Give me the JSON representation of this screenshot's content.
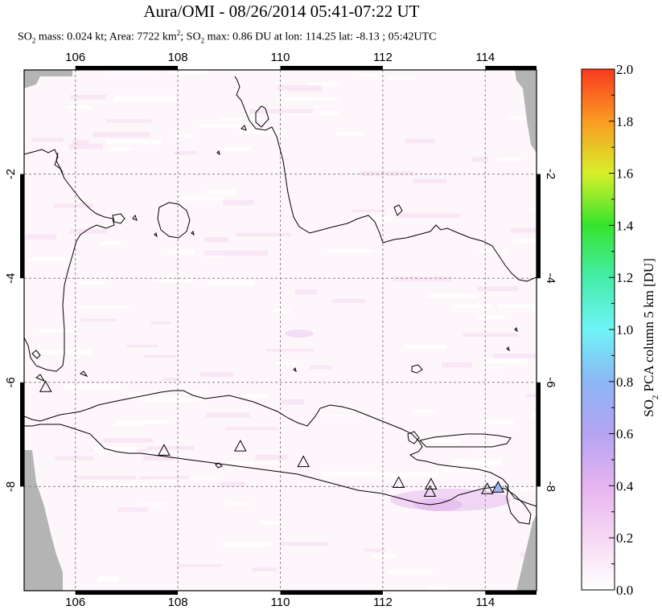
{
  "title": "Aura/OMI - 08/26/2014 05:41-07:22 UT",
  "subtitle": {
    "part1": "SO",
    "sub1": "2",
    "part2": " mass: 0.024 kt; Area: 7722 km",
    "sup1": "2",
    "part3": "; SO",
    "sub2": "2",
    "part4": " max: 0.86 DU at lon: 114.25 lat: -8.13 ; 05:42UTC"
  },
  "map": {
    "lon_range": [
      105,
      115
    ],
    "lat_range": [
      -10,
      0
    ],
    "lon_ticks": [
      "106",
      "108",
      "110",
      "112",
      "114"
    ],
    "lat_ticks": [
      "-2",
      "-4",
      "-6",
      "-8"
    ],
    "volcanoes": [
      {
        "lon": 105.42,
        "lat": -6.1
      },
      {
        "lon": 107.73,
        "lat": -7.32
      },
      {
        "lon": 109.22,
        "lat": -7.24
      },
      {
        "lon": 110.45,
        "lat": -7.54
      },
      {
        "lon": 112.31,
        "lat": -7.94
      },
      {
        "lon": 112.94,
        "lat": -7.97
      },
      {
        "lon": 112.92,
        "lat": -8.11
      },
      {
        "lon": 114.04,
        "lat": -8.06
      },
      {
        "lon": 114.25,
        "lat": -8.03
      }
    ],
    "colors": {
      "missing": "#b4b4b4",
      "background": "#fdf6fb",
      "volcano_edge": "#000000",
      "volcano_highlight": "#9ab6f0"
    }
  },
  "colorbar": {
    "label_pre": "SO",
    "label_sub": "2",
    "label_post": " PCA column 5 km [DU]",
    "ticks": [
      "0.0",
      "0.2",
      "0.4",
      "0.6",
      "0.8",
      "1.0",
      "1.2",
      "1.4",
      "1.6",
      "1.8",
      "2.0"
    ],
    "range": [
      0,
      2
    ]
  }
}
